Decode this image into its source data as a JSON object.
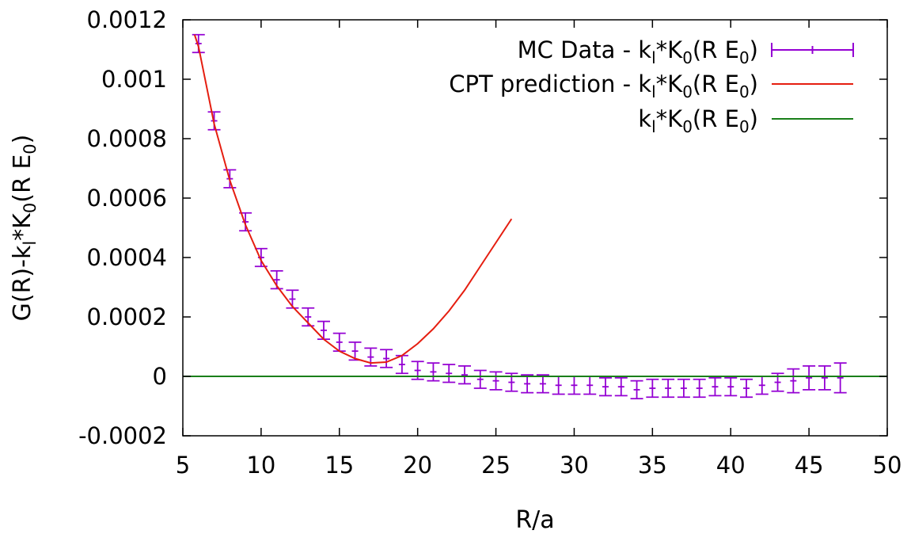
{
  "chart_data": {
    "type": "line",
    "title": "",
    "xlabel": "R/a",
    "ylabel_parts": [
      "G(R)-k",
      "l",
      "*K",
      "0",
      "(R E",
      "0",
      ")"
    ],
    "xlim": [
      5,
      50
    ],
    "ylim": [
      -0.0002,
      0.0012
    ],
    "xticks": [
      5,
      10,
      15,
      20,
      25,
      30,
      35,
      40,
      45,
      50
    ],
    "yticks": [
      -0.0002,
      0,
      0.0002,
      0.0004,
      0.0006,
      0.0008,
      0.001,
      0.0012
    ],
    "ytick_labels": [
      "-0.0002",
      "0",
      "0.0002",
      "0.0004",
      "0.0006",
      "0.0008",
      "0.001",
      "0.0012"
    ],
    "grid": false,
    "legend_position": "top-right",
    "colors": {
      "mc": "#9400d3",
      "cpt": "#e51e10",
      "kl": "#1a7f1a"
    },
    "series": [
      {
        "name_parts": [
          "MC Data - k",
          "l",
          "*K",
          "0",
          "(R E",
          "0",
          ")"
        ],
        "kind": "errorbars",
        "color": "#9400d3",
        "x": [
          6,
          7,
          8,
          9,
          10,
          11,
          12,
          13,
          14,
          15,
          16,
          17,
          18,
          19,
          20,
          21,
          22,
          23,
          24,
          25,
          26,
          27,
          28,
          29,
          30,
          31,
          32,
          33,
          34,
          35,
          36,
          37,
          38,
          39,
          40,
          41,
          42,
          43,
          44,
          45,
          46,
          47
        ],
        "y": [
          0.00112,
          0.00086,
          0.000665,
          0.00052,
          0.0004,
          0.000325,
          0.00026,
          0.0002,
          0.000155,
          0.000115,
          8.5e-05,
          6.5e-05,
          6e-05,
          4e-05,
          2e-05,
          1.5e-05,
          1e-05,
          5e-06,
          -1e-05,
          -1.5e-05,
          -2e-05,
          -2.5e-05,
          -2.5e-05,
          -3e-05,
          -3e-05,
          -3e-05,
          -3.5e-05,
          -3.5e-05,
          -4.5e-05,
          -4e-05,
          -4e-05,
          -4e-05,
          -4e-05,
          -3.5e-05,
          -3.5e-05,
          -4e-05,
          -3e-05,
          -2e-05,
          -1.5e-05,
          -5e-06,
          -5e-06,
          -5e-06
        ],
        "err": [
          3e-05,
          3e-05,
          3e-05,
          3e-05,
          3e-05,
          3e-05,
          3e-05,
          3e-05,
          3e-05,
          3e-05,
          3e-05,
          3e-05,
          3e-05,
          3e-05,
          3e-05,
          3e-05,
          3e-05,
          3e-05,
          3e-05,
          3e-05,
          3e-05,
          3e-05,
          3e-05,
          3e-05,
          3e-05,
          3e-05,
          3e-05,
          3e-05,
          3e-05,
          3e-05,
          3e-05,
          3e-05,
          3e-05,
          3e-05,
          3e-05,
          3e-05,
          3e-05,
          3e-05,
          4e-05,
          4e-05,
          4e-05,
          5e-05
        ]
      },
      {
        "name_parts": [
          "CPT prediction - k",
          "l",
          "*K",
          "0",
          "(R E",
          "0",
          ")"
        ],
        "kind": "line",
        "color": "#e51e10",
        "x": [
          5.75,
          6,
          7,
          8,
          9,
          10,
          11,
          12,
          13,
          14,
          15,
          16,
          17,
          18,
          19,
          20,
          21,
          22,
          23,
          24,
          25,
          26
        ],
        "y": [
          0.00115,
          0.00111,
          0.00085,
          0.00066,
          0.00051,
          0.00039,
          0.000305,
          0.000235,
          0.00018,
          0.000125,
          8.5e-05,
          6e-05,
          4.5e-05,
          4.8e-05,
          7e-05,
          0.00011,
          0.00016,
          0.00022,
          0.00029,
          0.00037,
          0.00045,
          0.00053
        ]
      },
      {
        "name_parts": [
          "k",
          "l",
          "*K",
          "0",
          "(R E",
          "0",
          ")"
        ],
        "kind": "line",
        "color": "#1a7f1a",
        "x": [
          5,
          50
        ],
        "y": [
          0,
          0
        ]
      }
    ]
  }
}
